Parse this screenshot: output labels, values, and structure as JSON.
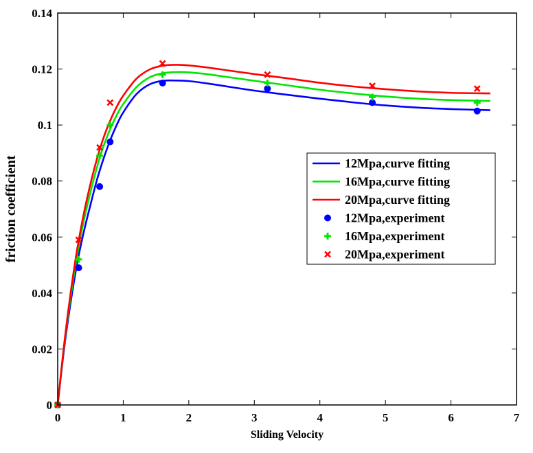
{
  "chart_data": {
    "type": "line",
    "title": "",
    "xlabel": "Sliding Velocity",
    "ylabel": "friction coefficient",
    "xlim": [
      0,
      7
    ],
    "ylim": [
      0,
      0.14
    ],
    "xticks": [
      0,
      1,
      2,
      3,
      4,
      5,
      6,
      7
    ],
    "xtick_labels": [
      "0",
      "1",
      "2",
      "3",
      "4",
      "5",
      "6",
      "7"
    ],
    "yticks": [
      0,
      0.02,
      0.04,
      0.06,
      0.08,
      0.1,
      0.12,
      0.14
    ],
    "ytick_labels": [
      "0",
      "0.02",
      "0.04",
      "0.06",
      "0.08",
      "0.1",
      "0.12",
      "0.14"
    ],
    "grid": false,
    "legend_position": "right",
    "series": [
      {
        "name": "12Mpa,curve fitting",
        "kind": "line",
        "color": "#0000ff",
        "x": [
          0,
          0.1,
          0.2,
          0.3,
          0.4,
          0.5,
          0.6,
          0.7,
          0.8,
          0.9,
          1.0,
          1.2,
          1.4,
          1.6,
          1.8,
          2.0,
          2.3,
          2.6,
          3.0,
          3.5,
          4.0,
          4.5,
          5.0,
          5.5,
          6.0,
          6.6
        ],
        "y": [
          0,
          0.0205,
          0.037,
          0.051,
          0.062,
          0.0715,
          0.0805,
          0.088,
          0.0945,
          0.1,
          0.1045,
          0.111,
          0.1145,
          0.1158,
          0.1159,
          0.1157,
          0.1148,
          0.1137,
          0.1123,
          0.1108,
          0.1094,
          0.1081,
          0.107,
          0.1062,
          0.1057,
          0.1053
        ]
      },
      {
        "name": "16Mpa,curve fitting",
        "kind": "line",
        "color": "#00e600",
        "x": [
          0,
          0.1,
          0.2,
          0.3,
          0.4,
          0.5,
          0.6,
          0.7,
          0.8,
          0.9,
          1.0,
          1.2,
          1.4,
          1.6,
          1.8,
          2.0,
          2.3,
          2.6,
          3.0,
          3.5,
          4.0,
          4.5,
          5.0,
          5.5,
          6.0,
          6.6
        ],
        "y": [
          0,
          0.0215,
          0.039,
          0.054,
          0.066,
          0.076,
          0.085,
          0.0925,
          0.0985,
          0.1035,
          0.1075,
          0.1135,
          0.117,
          0.1185,
          0.1189,
          0.1188,
          0.1181,
          0.1171,
          0.1158,
          0.1142,
          0.1126,
          0.1113,
          0.1102,
          0.1094,
          0.1089,
          0.1086
        ]
      },
      {
        "name": "20Mpa,curve fitting",
        "kind": "line",
        "color": "#ff0000",
        "x": [
          0,
          0.1,
          0.2,
          0.3,
          0.4,
          0.5,
          0.6,
          0.7,
          0.8,
          0.9,
          1.0,
          1.2,
          1.4,
          1.6,
          1.8,
          2.0,
          2.3,
          2.6,
          3.0,
          3.5,
          4.0,
          4.5,
          5.0,
          5.5,
          6.0,
          6.6
        ],
        "y": [
          0,
          0.022,
          0.0405,
          0.056,
          0.0685,
          0.079,
          0.088,
          0.0955,
          0.1015,
          0.1065,
          0.1105,
          0.1165,
          0.1198,
          0.1212,
          0.1215,
          0.1213,
          0.1205,
          0.1195,
          0.1182,
          0.1167,
          0.1151,
          0.1138,
          0.1128,
          0.112,
          0.1115,
          0.1113
        ]
      },
      {
        "name": "12Mpa,experiment",
        "kind": "scatter",
        "marker": "circle",
        "color": "#0000ff",
        "x": [
          0,
          0.32,
          0.64,
          0.8,
          1.6,
          3.2,
          4.8,
          6.4
        ],
        "y": [
          0,
          0.049,
          0.078,
          0.094,
          0.115,
          0.113,
          0.108,
          0.105
        ]
      },
      {
        "name": "16Mpa,experiment",
        "kind": "scatter",
        "marker": "plus",
        "color": "#00e600",
        "x": [
          0,
          0.32,
          0.64,
          0.8,
          1.6,
          3.2,
          4.8,
          6.4
        ],
        "y": [
          0,
          0.052,
          0.089,
          0.1,
          0.118,
          0.115,
          0.11,
          0.108
        ]
      },
      {
        "name": "20Mpa,experiment",
        "kind": "scatter",
        "marker": "cross",
        "color": "#ff0000",
        "x": [
          0,
          0.32,
          0.64,
          0.8,
          1.6,
          3.2,
          4.8,
          6.4
        ],
        "y": [
          0,
          0.059,
          0.092,
          0.108,
          0.122,
          0.118,
          0.114,
          0.113
        ]
      }
    ]
  }
}
